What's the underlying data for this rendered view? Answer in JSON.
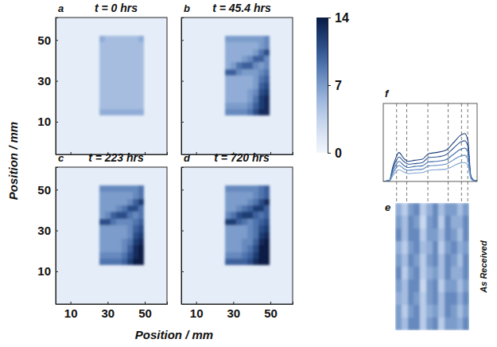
{
  "chart_data": {
    "type": "heatmap",
    "x_label": "Position / mm",
    "y_label": "Position / mm",
    "colorbar": {
      "range": [
        0,
        14
      ],
      "ticks": [
        0,
        7,
        14
      ]
    },
    "panels": [
      {
        "panel": "a",
        "title": "t = 0 hrs",
        "tick_labels": "y",
        "xlim": [
          2,
          62
        ],
        "ylim": [
          -6,
          61
        ],
        "xticks": [
          10,
          30,
          50
        ],
        "yticks": [
          10,
          30,
          50
        ],
        "background": 1,
        "x_edges": [
          25.5,
          28.5,
          31.5,
          34.5,
          37.5,
          40.5,
          43.5,
          46.5,
          49.5
        ],
        "y_edges": [
          52,
          48.75,
          45.5,
          42.25,
          39,
          35.75,
          32.5,
          29.25,
          26,
          22.75,
          19.5,
          16.25,
          13
        ],
        "cells": [
          [
            6,
            5,
            5,
            5,
            5,
            5,
            5,
            6
          ],
          [
            5,
            5,
            5,
            5,
            5,
            5,
            5,
            5
          ],
          [
            5,
            5,
            5,
            5,
            5,
            5,
            5,
            5
          ],
          [
            5,
            5,
            5,
            5,
            5,
            5,
            5,
            5
          ],
          [
            5,
            5,
            5,
            5,
            5,
            5,
            5,
            5
          ],
          [
            5,
            5,
            5,
            5,
            5,
            5,
            5,
            5
          ],
          [
            5,
            5,
            5,
            5,
            5,
            5,
            5,
            5
          ],
          [
            5,
            5,
            5,
            5,
            5,
            5,
            5,
            5
          ],
          [
            5,
            5,
            5,
            5,
            5,
            5,
            5,
            5
          ],
          [
            5,
            5,
            5,
            5,
            5,
            5,
            5,
            5
          ],
          [
            5,
            5,
            5,
            5,
            5,
            5,
            5,
            5
          ],
          [
            6,
            6,
            6,
            6,
            6,
            6,
            6,
            6
          ]
        ]
      },
      {
        "panel": "b",
        "title": "t = 45.4 hrs",
        "tick_labels": false,
        "xlim": [
          2,
          62
        ],
        "ylim": [
          -6,
          61
        ],
        "xticks": [
          10,
          30,
          50
        ],
        "yticks": [
          10,
          30,
          50
        ],
        "background": 1,
        "x_edges": [
          25.5,
          28.5,
          31.5,
          34.5,
          37.5,
          40.5,
          43.5,
          46.5,
          49.5
        ],
        "y_edges": [
          52,
          48.75,
          45.5,
          42.25,
          39,
          35.75,
          32.5,
          29.25,
          26,
          22.75,
          19.5,
          16.25,
          13
        ],
        "cells": [
          [
            7,
            7,
            7,
            7,
            7,
            7,
            7,
            8
          ],
          [
            6,
            6,
            6,
            6,
            6,
            6,
            7,
            8
          ],
          [
            6,
            6,
            6,
            6,
            6,
            7,
            9,
            11
          ],
          [
            6,
            6,
            6,
            7,
            8,
            10,
            10,
            8
          ],
          [
            6,
            7,
            9,
            10,
            10,
            8,
            7,
            8
          ],
          [
            10,
            10,
            8,
            7,
            7,
            7,
            8,
            9
          ],
          [
            6,
            6,
            6,
            6,
            6,
            7,
            9,
            10
          ],
          [
            6,
            6,
            6,
            6,
            6,
            7,
            10,
            11
          ],
          [
            6,
            6,
            6,
            6,
            7,
            8,
            11,
            12
          ],
          [
            6,
            6,
            6,
            6,
            7,
            9,
            12,
            13
          ],
          [
            7,
            7,
            7,
            7,
            8,
            10,
            12,
            13
          ],
          [
            8,
            8,
            8,
            8,
            9,
            11,
            13,
            13
          ]
        ]
      },
      {
        "panel": "c",
        "title": "t = 223 hrs",
        "xlim": [
          2,
          62
        ],
        "ylim": [
          -6,
          61
        ],
        "xticks": [
          10,
          30,
          50
        ],
        "yticks": [
          10,
          30,
          50
        ],
        "background": 1,
        "x_edges": [
          25.5,
          28.5,
          31.5,
          34.5,
          37.5,
          40.5,
          43.5,
          46.5,
          49.5
        ],
        "y_edges": [
          52,
          48.75,
          45.5,
          42.25,
          39,
          35.75,
          32.5,
          29.25,
          26,
          22.75,
          19.5,
          16.25,
          13
        ],
        "cells": [
          [
            8,
            8,
            8,
            8,
            8,
            8,
            8,
            9
          ],
          [
            7,
            7,
            7,
            7,
            7,
            7,
            8,
            9
          ],
          [
            7,
            7,
            7,
            7,
            7,
            8,
            10,
            12
          ],
          [
            7,
            7,
            7,
            8,
            9,
            11,
            11,
            9
          ],
          [
            7,
            8,
            10,
            11,
            11,
            9,
            8,
            9
          ],
          [
            11,
            11,
            9,
            8,
            8,
            8,
            9,
            10
          ],
          [
            7,
            7,
            7,
            7,
            7,
            8,
            10,
            11
          ],
          [
            7,
            7,
            7,
            7,
            7,
            8,
            11,
            12
          ],
          [
            7,
            7,
            7,
            7,
            8,
            9,
            12,
            13
          ],
          [
            7,
            7,
            7,
            7,
            8,
            10,
            13,
            14
          ],
          [
            8,
            8,
            8,
            8,
            9,
            11,
            13,
            14
          ],
          [
            9,
            9,
            9,
            9,
            10,
            12,
            14,
            14
          ]
        ]
      },
      {
        "panel": "d",
        "title": "t = 720 hrs",
        "tick_labels": "x",
        "xlim": [
          2,
          62
        ],
        "ylim": [
          -6,
          61
        ],
        "xticks": [
          10,
          30,
          50
        ],
        "yticks": [
          10,
          30,
          50
        ],
        "background": 1,
        "x_edges": [
          25.5,
          28.5,
          31.5,
          34.5,
          37.5,
          40.5,
          43.5,
          46.5,
          49.5
        ],
        "y_edges": [
          52,
          48.75,
          45.5,
          42.25,
          39,
          35.75,
          32.5,
          29.25,
          26,
          22.75,
          19.5,
          16.25,
          13
        ],
        "cells": [
          [
            8,
            8,
            8,
            8,
            8,
            8,
            9,
            10
          ],
          [
            7,
            7,
            7,
            7,
            7,
            8,
            9,
            10
          ],
          [
            7,
            7,
            7,
            7,
            8,
            9,
            11,
            13
          ],
          [
            7,
            7,
            8,
            9,
            10,
            12,
            12,
            10
          ],
          [
            8,
            9,
            11,
            12,
            12,
            10,
            9,
            10
          ],
          [
            12,
            12,
            10,
            9,
            8,
            9,
            10,
            11
          ],
          [
            7,
            7,
            7,
            7,
            8,
            9,
            11,
            12
          ],
          [
            7,
            7,
            7,
            7,
            8,
            9,
            12,
            13
          ],
          [
            7,
            7,
            7,
            8,
            8,
            10,
            13,
            14
          ],
          [
            7,
            7,
            7,
            8,
            9,
            11,
            14,
            14
          ],
          [
            8,
            8,
            8,
            9,
            10,
            12,
            14,
            14
          ],
          [
            10,
            10,
            10,
            10,
            11,
            13,
            14,
            14
          ]
        ]
      }
    ],
    "profile": {
      "type": "line",
      "panel": "f",
      "tick_labels": false,
      "xlim": [
        0,
        60
      ],
      "ylim": [
        0,
        14
      ],
      "x": [
        0,
        4,
        6,
        8,
        10,
        13,
        16,
        20,
        25,
        29,
        34,
        40,
        45,
        49,
        52,
        54,
        56,
        58,
        60
      ],
      "series": [
        {
          "color": "#1c3f7a",
          "values": [
            0,
            0.2,
            2.5,
            4.2,
            5.2,
            4.2,
            3.6,
            3.8,
            4.0,
            5.0,
            5.2,
            5.6,
            7.0,
            8.2,
            8.6,
            7.5,
            1.0,
            0.2,
            0.1
          ]
        },
        {
          "color": "#2c5592",
          "values": [
            0,
            0.2,
            2.2,
            3.6,
            4.4,
            3.6,
            3.1,
            3.2,
            3.4,
            4.3,
            4.4,
            4.8,
            6.0,
            7.0,
            7.3,
            6.4,
            0.9,
            0.2,
            0.1
          ]
        },
        {
          "color": "#3d6aa8",
          "values": [
            0,
            0.2,
            1.8,
            2.9,
            3.6,
            2.9,
            2.5,
            2.7,
            2.8,
            3.5,
            3.6,
            3.9,
            4.9,
            5.7,
            6.0,
            5.3,
            0.8,
            0.2,
            0.1
          ]
        },
        {
          "color": "#5a86bf",
          "values": [
            0,
            0.1,
            1.4,
            2.3,
            2.9,
            2.3,
            2.0,
            2.1,
            2.2,
            2.8,
            2.9,
            3.1,
            3.9,
            4.5,
            4.7,
            4.1,
            0.6,
            0.1,
            0.1
          ]
        },
        {
          "color": "#7fa3d2",
          "values": [
            0,
            0.1,
            1.0,
            1.7,
            2.1,
            1.7,
            1.4,
            1.5,
            1.6,
            2.0,
            2.1,
            2.2,
            2.8,
            3.3,
            3.4,
            3.0,
            0.5,
            0.1,
            0.1
          ]
        }
      ],
      "guides": [
        8.5,
        15,
        28.5,
        41.5,
        50,
        54
      ]
    },
    "image": {
      "panel": "e",
      "label": "As Received",
      "cells": [
        [
          6,
          4,
          7,
          8,
          4,
          6,
          8,
          5,
          7,
          7,
          5,
          7
        ],
        [
          7,
          5,
          8,
          7,
          3,
          7,
          8,
          4,
          8,
          6,
          6,
          8
        ],
        [
          8,
          5,
          8,
          8,
          4,
          7,
          7,
          5,
          8,
          7,
          5,
          8
        ],
        [
          6,
          4,
          7,
          8,
          5,
          6,
          8,
          4,
          7,
          8,
          6,
          7
        ],
        [
          7,
          5,
          8,
          7,
          4,
          7,
          8,
          5,
          8,
          7,
          5,
          8
        ],
        [
          8,
          4,
          7,
          8,
          4,
          6,
          7,
          5,
          8,
          6,
          6,
          8
        ],
        [
          7,
          5,
          8,
          8,
          3,
          7,
          8,
          4,
          7,
          7,
          5,
          7
        ],
        [
          6,
          5,
          8,
          7,
          4,
          7,
          8,
          5,
          8,
          8,
          6,
          8
        ],
        [
          7,
          4,
          7,
          8,
          4,
          6,
          7,
          5,
          8,
          7,
          5,
          7
        ],
        [
          7,
          5,
          8,
          8,
          4,
          7,
          8,
          4,
          7,
          7,
          6,
          8
        ]
      ]
    }
  }
}
